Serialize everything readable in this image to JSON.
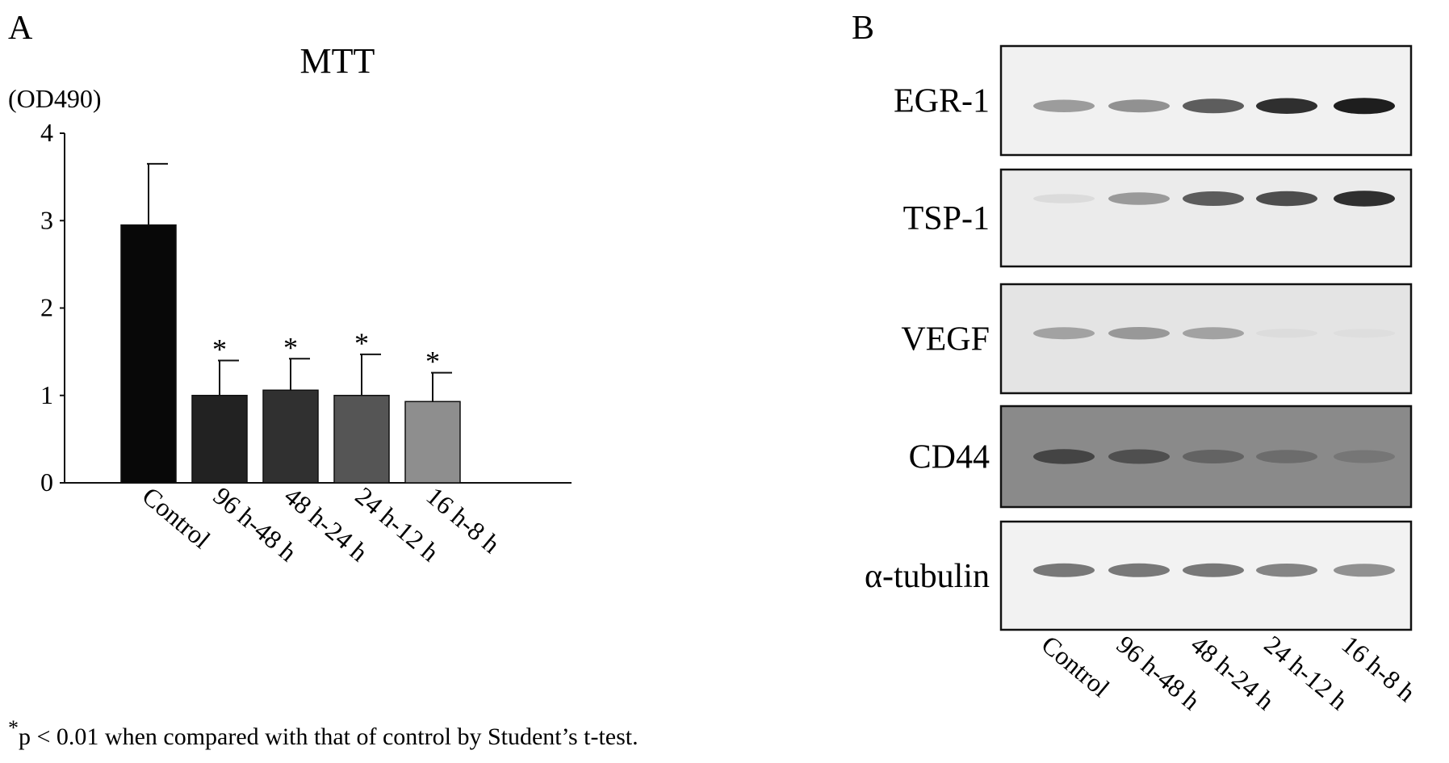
{
  "panel_a": {
    "letter": "A",
    "unit_label": "(OD490)"
  },
  "panel_b": {
    "letter": "B",
    "blots": [
      {
        "label": "EGR-1",
        "intensities": [
          0.55,
          0.6,
          0.8,
          0.95,
          1.0
        ],
        "background": "#f1f1f1",
        "band_y": 0.55
      },
      {
        "label": "TSP-1",
        "intensities": [
          0.15,
          0.55,
          0.8,
          0.85,
          0.95
        ],
        "background": "#ebebeb",
        "band_y": 0.3
      },
      {
        "label": "VEGF",
        "intensities": [
          0.5,
          0.55,
          0.5,
          0.1,
          0.08
        ],
        "background": "#e4e4e4",
        "band_y": 0.45
      },
      {
        "label": "CD44",
        "intensities": [
          0.85,
          0.8,
          0.7,
          0.65,
          0.6
        ],
        "background": "#8a8a8a",
        "band_y": 0.5
      },
      {
        "label": "α-tubulin",
        "intensities": [
          0.7,
          0.7,
          0.7,
          0.65,
          0.6
        ],
        "background": "#f2f2f2",
        "band_y": 0.45
      }
    ],
    "lanes": [
      "Control",
      "96 h-48 h",
      "48 h-24 h",
      "24 h-12 h",
      "16 h-8 h"
    ]
  },
  "footnote": {
    "star": "*",
    "text": "p < 0.01 when compared with that of control by Student’s t-test."
  },
  "chart_data": {
    "type": "bar",
    "title": "MTT",
    "xlabel": "",
    "ylabel": "(OD490)",
    "ylim": [
      0,
      4
    ],
    "yticks": [
      "0",
      "1",
      "2",
      "3",
      "4"
    ],
    "categories": [
      "Control",
      "96 h-48 h",
      "48 h-24 h",
      "24 h-12 h",
      "16 h-8 h"
    ],
    "values": [
      2.95,
      1.0,
      1.06,
      1.0,
      0.93
    ],
    "errors": [
      0.7,
      0.4,
      0.36,
      0.47,
      0.33
    ],
    "significance": [
      "",
      "*",
      "*",
      "*",
      "*"
    ],
    "colors": [
      "#080808",
      "#222222",
      "#303030",
      "#555555",
      "#8e8e8e"
    ],
    "grid": false
  }
}
